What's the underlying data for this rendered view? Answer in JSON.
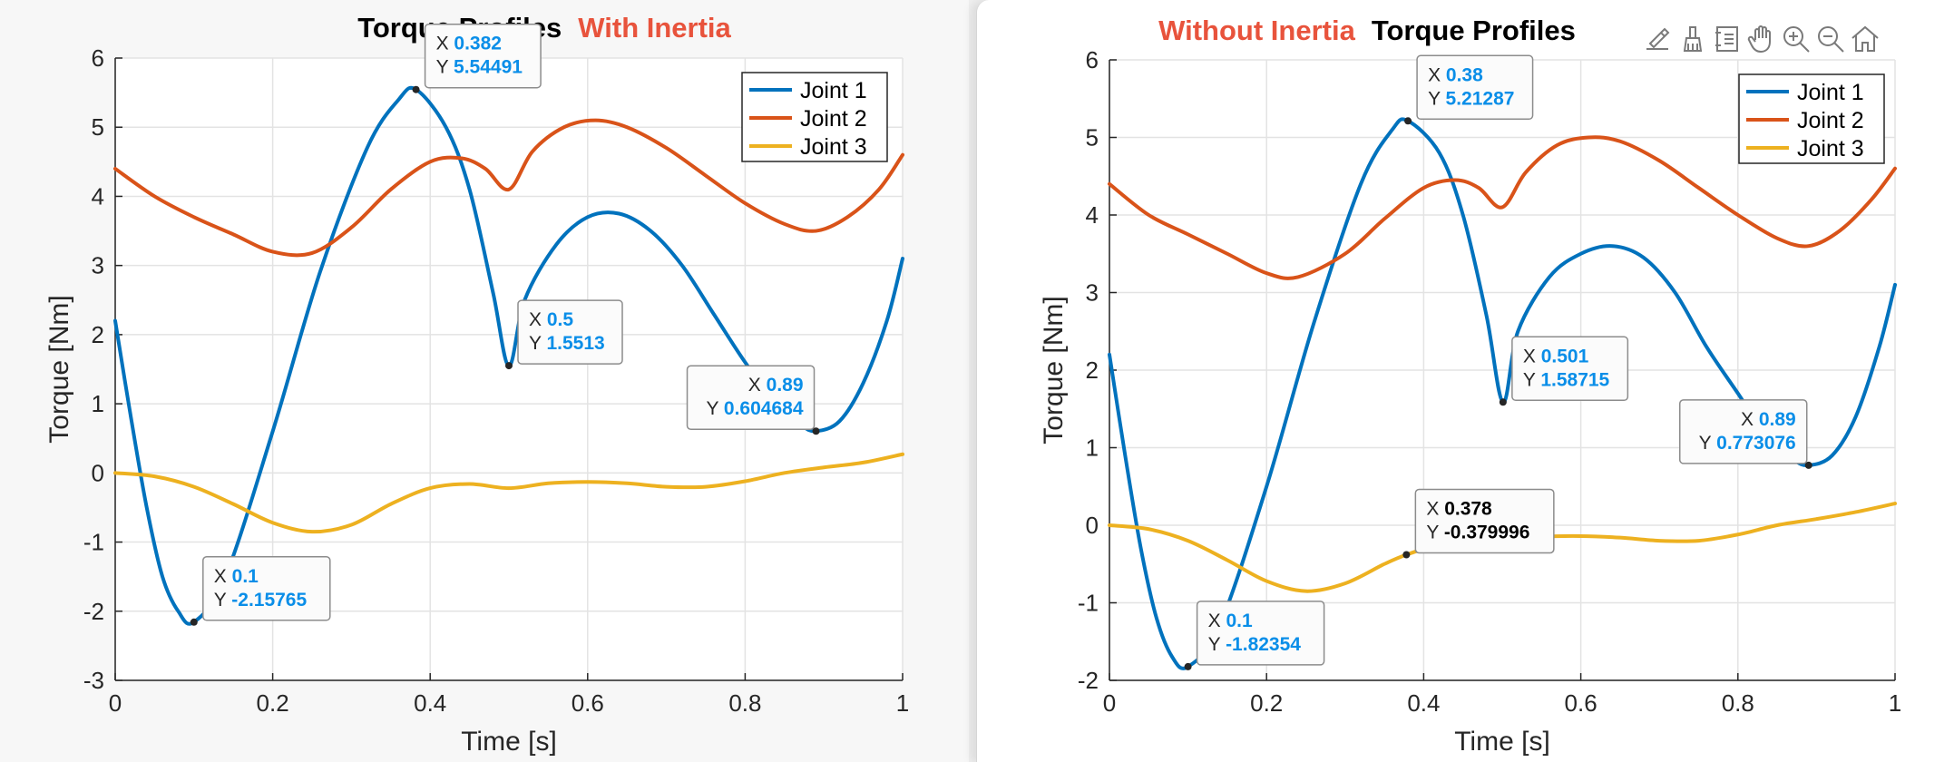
{
  "colors": {
    "joint1": "#0072bd",
    "joint2": "#d95319",
    "joint3": "#edb120",
    "tipValue": "#0a8ee8",
    "tipValueSelected": "#000000",
    "titleAccent": "#e8533c"
  },
  "toolbar": {
    "icons": [
      "export-icon",
      "brush-icon",
      "datatip-icon",
      "pan-hand-icon",
      "zoom-in-icon",
      "zoom-out-icon",
      "home-icon"
    ]
  },
  "chart_data": [
    {
      "type": "line",
      "title": "Torque Profiles",
      "title_accent": "With Inertia",
      "title_accent_position": "right",
      "xlabel": "Time [s]",
      "ylabel": "Torque [Nm]",
      "xlim": [
        0,
        1
      ],
      "ylim": [
        -3,
        6
      ],
      "xticks": [
        0,
        0.2,
        0.4,
        0.6,
        0.8,
        1
      ],
      "xtick_labels": [
        "0",
        "0.2",
        "0.4",
        "0.6",
        "0.8",
        "1"
      ],
      "yticks": [
        -3,
        -2,
        -1,
        0,
        1,
        2,
        3,
        4,
        5,
        6
      ],
      "ytick_labels": [
        "-3",
        "-2",
        "-1",
        "0",
        "1",
        "2",
        "3",
        "4",
        "5",
        "6"
      ],
      "grid": true,
      "legend_position": "top-right",
      "series": [
        {
          "name": "Joint 1",
          "x": [
            0,
            0.02,
            0.04,
            0.06,
            0.08,
            0.1,
            0.14,
            0.2,
            0.26,
            0.32,
            0.36,
            0.382,
            0.42,
            0.45,
            0.48,
            0.5,
            0.52,
            0.56,
            0.6,
            0.64,
            0.68,
            0.72,
            0.76,
            0.8,
            0.84,
            0.87,
            0.89,
            0.92,
            0.95,
            0.98,
            1.0
          ],
          "y": [
            2.2,
            0.8,
            -0.5,
            -1.5,
            -2.0,
            -2.15765,
            -1.5,
            0.6,
            2.9,
            4.7,
            5.4,
            5.54491,
            5.0,
            4.1,
            2.6,
            1.5513,
            2.5,
            3.3,
            3.7,
            3.75,
            3.5,
            3.0,
            2.3,
            1.6,
            1.0,
            0.7,
            0.604684,
            0.75,
            1.3,
            2.2,
            3.1
          ]
        },
        {
          "name": "Joint 2",
          "x": [
            0,
            0.05,
            0.1,
            0.15,
            0.2,
            0.25,
            0.3,
            0.35,
            0.4,
            0.44,
            0.47,
            0.5,
            0.53,
            0.57,
            0.61,
            0.65,
            0.7,
            0.75,
            0.8,
            0.85,
            0.89,
            0.93,
            0.97,
            1.0
          ],
          "y": [
            4.4,
            4.0,
            3.7,
            3.45,
            3.2,
            3.18,
            3.55,
            4.1,
            4.5,
            4.55,
            4.4,
            4.1,
            4.65,
            5.0,
            5.1,
            5.0,
            4.7,
            4.3,
            3.9,
            3.6,
            3.5,
            3.7,
            4.1,
            4.6
          ]
        },
        {
          "name": "Joint 3",
          "x": [
            0,
            0.05,
            0.1,
            0.15,
            0.2,
            0.25,
            0.3,
            0.35,
            0.4,
            0.45,
            0.5,
            0.55,
            0.6,
            0.65,
            0.7,
            0.75,
            0.8,
            0.85,
            0.9,
            0.95,
            1.0
          ],
          "y": [
            0.0,
            -0.05,
            -0.2,
            -0.45,
            -0.72,
            -0.85,
            -0.75,
            -0.45,
            -0.22,
            -0.16,
            -0.22,
            -0.15,
            -0.13,
            -0.15,
            -0.2,
            -0.2,
            -0.12,
            0.0,
            0.08,
            0.15,
            0.27
          ]
        }
      ],
      "datatips": [
        {
          "x_label": "0.1",
          "y_label": "-2.15765",
          "x": 0.1,
          "y": -2.15765,
          "side": "right",
          "selected": false
        },
        {
          "x_label": "0.382",
          "y_label": "5.54491",
          "x": 0.382,
          "y": 5.54491,
          "side": "right",
          "selected": false
        },
        {
          "x_label": "0.5",
          "y_label": "1.5513",
          "x": 0.5,
          "y": 1.5513,
          "side": "right",
          "selected": false
        },
        {
          "x_label": "0.89",
          "y_label": "0.604684",
          "x": 0.89,
          "y": 0.604684,
          "side": "left",
          "selected": false
        }
      ]
    },
    {
      "type": "line",
      "title": "Torque Profiles",
      "title_accent": "Without Inertia",
      "title_accent_position": "left",
      "xlabel": "Time [s]",
      "ylabel": "Torque [Nm]",
      "xlim": [
        0,
        1
      ],
      "ylim": [
        -2,
        6
      ],
      "xticks": [
        0,
        0.2,
        0.4,
        0.6,
        0.8,
        1
      ],
      "xtick_labels": [
        "0",
        "0.2",
        "0.4",
        "0.6",
        "0.8",
        "1"
      ],
      "yticks": [
        -2,
        -1,
        0,
        1,
        2,
        3,
        4,
        5,
        6
      ],
      "ytick_labels": [
        "-2",
        "-1",
        "0",
        "1",
        "2",
        "3",
        "4",
        "5",
        "6"
      ],
      "grid": true,
      "legend_position": "top-right",
      "series": [
        {
          "name": "Joint 1",
          "x": [
            0,
            0.02,
            0.04,
            0.06,
            0.08,
            0.1,
            0.14,
            0.2,
            0.26,
            0.32,
            0.36,
            0.38,
            0.42,
            0.45,
            0.48,
            0.501,
            0.52,
            0.56,
            0.6,
            0.64,
            0.68,
            0.72,
            0.76,
            0.8,
            0.84,
            0.87,
            0.89,
            0.92,
            0.95,
            0.98,
            1.0
          ],
          "y": [
            2.2,
            0.9,
            -0.3,
            -1.2,
            -1.7,
            -1.82354,
            -1.3,
            0.5,
            2.6,
            4.4,
            5.1,
            5.21287,
            4.8,
            4.0,
            2.7,
            1.58715,
            2.5,
            3.2,
            3.5,
            3.6,
            3.45,
            3.0,
            2.3,
            1.7,
            1.1,
            0.85,
            0.773076,
            0.9,
            1.4,
            2.3,
            3.1
          ]
        },
        {
          "name": "Joint 2",
          "x": [
            0,
            0.05,
            0.1,
            0.15,
            0.2,
            0.24,
            0.3,
            0.35,
            0.4,
            0.44,
            0.47,
            0.5,
            0.53,
            0.57,
            0.61,
            0.65,
            0.7,
            0.75,
            0.8,
            0.85,
            0.89,
            0.93,
            0.97,
            1.0
          ],
          "y": [
            4.4,
            4.0,
            3.75,
            3.5,
            3.25,
            3.2,
            3.5,
            3.95,
            4.35,
            4.45,
            4.35,
            4.1,
            4.55,
            4.9,
            5.0,
            4.95,
            4.7,
            4.35,
            4.0,
            3.7,
            3.6,
            3.8,
            4.2,
            4.6
          ]
        },
        {
          "name": "Joint 3",
          "x": [
            0,
            0.05,
            0.1,
            0.15,
            0.2,
            0.25,
            0.3,
            0.35,
            0.378,
            0.42,
            0.46,
            0.5,
            0.55,
            0.6,
            0.65,
            0.7,
            0.75,
            0.8,
            0.85,
            0.9,
            0.95,
            1.0
          ],
          "y": [
            0.0,
            -0.05,
            -0.2,
            -0.45,
            -0.72,
            -0.85,
            -0.75,
            -0.5,
            -0.379996,
            -0.25,
            -0.2,
            -0.2,
            -0.15,
            -0.14,
            -0.16,
            -0.2,
            -0.2,
            -0.12,
            0.0,
            0.08,
            0.17,
            0.28
          ]
        }
      ],
      "datatips": [
        {
          "x_label": "0.1",
          "y_label": "-1.82354",
          "x": 0.1,
          "y": -1.82354,
          "side": "right",
          "selected": false
        },
        {
          "x_label": "0.38",
          "y_label": "5.21287",
          "x": 0.38,
          "y": 5.21287,
          "side": "right",
          "selected": false
        },
        {
          "x_label": "0.501",
          "y_label": "1.58715",
          "x": 0.501,
          "y": 1.58715,
          "side": "right",
          "selected": false
        },
        {
          "x_label": "0.89",
          "y_label": "0.773076",
          "x": 0.89,
          "y": 0.773076,
          "side": "left",
          "selected": false
        },
        {
          "x_label": "0.378",
          "y_label": "-0.379996",
          "x": 0.378,
          "y": -0.379996,
          "side": "right",
          "selected": true
        }
      ]
    }
  ]
}
